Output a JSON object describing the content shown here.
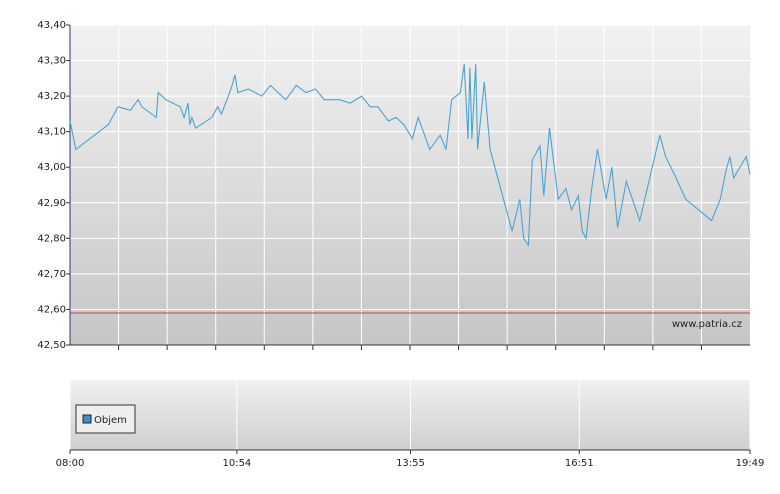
{
  "chart_data": {
    "type": "line",
    "watermark": "www.patria.cz",
    "x": [
      "08:00",
      "08:06",
      "08:40",
      "08:50",
      "09:03",
      "09:11",
      "09:15",
      "09:30",
      "09:32",
      "09:40",
      "09:55",
      "09:59",
      "10:03",
      "10:05",
      "10:07",
      "10:11",
      "10:28",
      "10:34",
      "10:38",
      "10:45",
      "10:49",
      "10:52",
      "10:55",
      "11:06",
      "11:20",
      "11:29",
      "11:37",
      "11:45",
      "11:56",
      "12:06",
      "12:16",
      "12:25",
      "12:31",
      "12:41",
      "12:52",
      "13:04",
      "13:13",
      "13:21",
      "13:32",
      "13:40",
      "13:48",
      "13:57",
      "14:03",
      "14:15",
      "14:26",
      "14:32",
      "14:38",
      "14:47",
      "14:51",
      "14:55",
      "14:57",
      "14:59",
      "15:03",
      "15:05",
      "15:12",
      "15:18",
      "15:41",
      "15:49",
      "15:53",
      "15:58",
      "16:02",
      "16:10",
      "16:14",
      "16:20",
      "16:29",
      "16:37",
      "16:43",
      "16:50",
      "16:54",
      "16:58",
      "17:04",
      "17:10",
      "17:19",
      "17:25",
      "17:31",
      "17:40",
      "17:54",
      "18:15",
      "18:21",
      "18:32",
      "18:42",
      "19:09",
      "19:18",
      "19:24",
      "19:28",
      "19:32",
      "19:45",
      "19:49"
    ],
    "series": [
      {
        "color": "#4aa3d6",
        "values": [
          43.13,
          43.05,
          43.12,
          43.17,
          43.16,
          43.19,
          43.17,
          43.14,
          43.21,
          43.19,
          43.17,
          43.14,
          43.18,
          43.12,
          43.14,
          43.11,
          43.14,
          43.17,
          43.15,
          43.2,
          43.23,
          43.26,
          43.21,
          43.22,
          43.2,
          43.23,
          43.21,
          43.19,
          43.23,
          43.21,
          43.22,
          43.19,
          43.19,
          43.19,
          43.18,
          43.2,
          43.17,
          43.17,
          43.13,
          43.14,
          43.12,
          43.08,
          43.14,
          43.05,
          43.09,
          43.05,
          43.19,
          43.21,
          43.29,
          43.08,
          43.28,
          43.08,
          43.29,
          43.05,
          43.24,
          43.05,
          42.82,
          42.91,
          42.8,
          42.78,
          43.02,
          43.06,
          42.92,
          43.11,
          42.91,
          42.94,
          42.88,
          42.92,
          42.82,
          42.8,
          42.94,
          43.05,
          42.91,
          43.0,
          42.83,
          42.96,
          42.85,
          43.09,
          43.03,
          42.97,
          42.91,
          42.85,
          42.91,
          42.99,
          43.03,
          42.97,
          43.03,
          42.98
        ]
      }
    ],
    "reference_line": {
      "value": 42.59,
      "color": "#d04040"
    },
    "ylim": [
      42.5,
      43.4
    ],
    "yticks": [
      {
        "value": 42.5,
        "label": "42,50"
      },
      {
        "value": 42.6,
        "label": "42,60"
      },
      {
        "value": 42.7,
        "label": "42,70"
      },
      {
        "value": 42.8,
        "label": "42,80"
      },
      {
        "value": 42.9,
        "label": "42,90"
      },
      {
        "value": 43.0,
        "label": "43,00"
      },
      {
        "value": 43.1,
        "label": "43,10"
      },
      {
        "value": 43.2,
        "label": "43,20"
      },
      {
        "value": 43.3,
        "label": "43,30"
      },
      {
        "value": 43.4,
        "label": "43,40"
      }
    ],
    "xlim": [
      "08:00",
      "19:49"
    ],
    "xticks": [
      "08:00",
      "10:54",
      "13:55",
      "16:51",
      "19:49"
    ],
    "volume_legend": {
      "name": "Objem",
      "color": "#3a8fd0"
    },
    "grid": true
  }
}
